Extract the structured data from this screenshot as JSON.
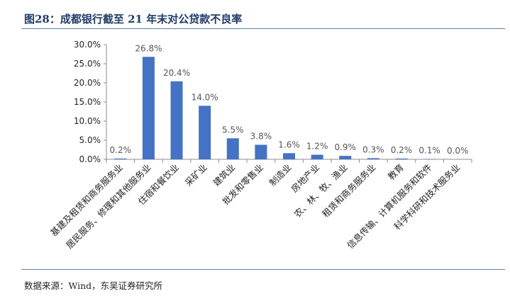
{
  "header": {
    "title": "图28：成都银行截至 21 年末对公贷款不良率"
  },
  "footer": {
    "source": "数据来源：Wind，东吴证券研究所"
  },
  "chart_data": {
    "type": "bar",
    "categories": [
      "基建及租赁和商务服务业",
      "居民服务、修理和其他服务业",
      "住宿和餐饮业",
      "采矿业",
      "建筑业",
      "批发和零售业",
      "制造业",
      "房地产业",
      "农、林、牧、渔业",
      "租赁和商务服务业",
      "教育",
      "信息传输、计算机服务和软件",
      "科学科研和技术服务业"
    ],
    "values": [
      0.2,
      26.8,
      20.4,
      14.0,
      5.5,
      3.8,
      1.6,
      1.2,
      0.9,
      0.3,
      0.2,
      0.1,
      0.0
    ],
    "data_labels": [
      "0.2%",
      "26.8%",
      "20.4%",
      "14.0%",
      "5.5%",
      "3.8%",
      "1.6%",
      "1.2%",
      "0.9%",
      "0.3%",
      "0.2%",
      "0.1%",
      "0.0%"
    ],
    "yticks": [
      "0.0%",
      "5.0%",
      "10.0%",
      "15.0%",
      "20.0%",
      "25.0%",
      "30.0%"
    ],
    "ylim": [
      0,
      30
    ],
    "bar_color": "#4472c4",
    "grid": false
  }
}
